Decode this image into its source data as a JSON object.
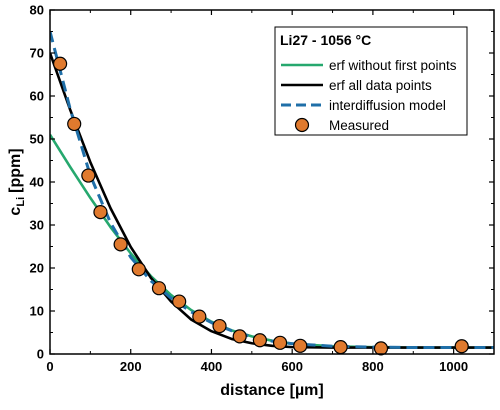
{
  "chart_data": {
    "type": "line",
    "title": "",
    "xlabel": "distance [µm]",
    "ylabel_main": "c",
    "ylabel_sub": "Li",
    "ylabel_unit": "[ppm]",
    "xlim": [
      0,
      1100
    ],
    "ylim": [
      0,
      80
    ],
    "xticks": [
      0,
      200,
      400,
      600,
      800,
      1000
    ],
    "yticks": [
      0,
      10,
      20,
      30,
      40,
      50,
      60,
      70,
      80
    ],
    "grid": false,
    "legend": {
      "placement": "top-right",
      "title": "Li27 - 1056 °C"
    },
    "series": [
      {
        "name": "erf without first points",
        "style": "solid",
        "color": "#26a86e",
        "x": [
          0,
          50,
          100,
          150,
          200,
          250,
          300,
          350,
          400,
          450,
          500,
          550,
          600,
          700,
          800,
          900,
          1000,
          1100
        ],
        "y": [
          51.0,
          43.5,
          36.3,
          29.5,
          23.4,
          18.1,
          13.7,
          10.2,
          7.5,
          5.5,
          4.1,
          3.1,
          2.4,
          1.8,
          1.6,
          1.5,
          1.5,
          1.5
        ]
      },
      {
        "name": "erf all data points",
        "style": "solid",
        "color": "#000000",
        "x": [
          0,
          50,
          100,
          150,
          200,
          250,
          300,
          350,
          400,
          450,
          500,
          550,
          600,
          700,
          800,
          900,
          1000,
          1100
        ],
        "y": [
          70.0,
          56.8,
          44.6,
          33.9,
          24.9,
          17.7,
          12.2,
          8.0,
          5.3,
          3.5,
          2.5,
          1.9,
          1.6,
          1.5,
          1.5,
          1.5,
          1.5,
          1.5
        ]
      },
      {
        "name": "interdiffusion model",
        "style": "dashed",
        "color": "#1f6fa8",
        "x": [
          0,
          25,
          50,
          100,
          150,
          200,
          250,
          300,
          350,
          400,
          450,
          500,
          550,
          600,
          700,
          800,
          900,
          1000,
          1100
        ],
        "y": [
          75.0,
          66.0,
          57.0,
          41.5,
          30.5,
          22.5,
          17.0,
          13.0,
          9.8,
          7.3,
          5.4,
          4.0,
          3.0,
          2.4,
          1.8,
          1.6,
          1.5,
          1.5,
          1.5
        ]
      },
      {
        "name": "Measured",
        "style": "markers",
        "color": "#e07a2e",
        "x": [
          25,
          60,
          95,
          125,
          175,
          220,
          270,
          320,
          370,
          420,
          470,
          520,
          570,
          620,
          720,
          820,
          1020
        ],
        "y": [
          67.5,
          53.5,
          41.5,
          33.0,
          25.5,
          19.7,
          15.3,
          12.2,
          8.7,
          6.5,
          4.1,
          3.2,
          2.6,
          1.9,
          1.6,
          1.3,
          1.8
        ]
      }
    ]
  }
}
